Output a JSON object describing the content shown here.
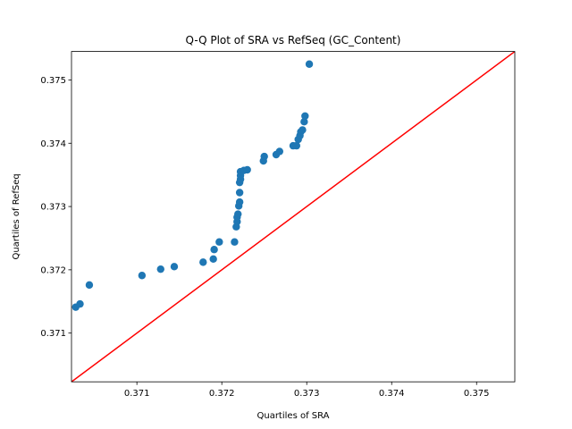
{
  "chart_data": {
    "type": "scatter",
    "title": "Q-Q Plot of SRA vs RefSeq (GC_Content)",
    "xlabel": "Quartiles of SRA",
    "ylabel": "Quartiles of RefSeq",
    "xlim": [
      0.37023,
      0.37545
    ],
    "ylim": [
      0.37023,
      0.37545
    ],
    "xticks": [
      0.371,
      0.372,
      0.373,
      0.374,
      0.375
    ],
    "yticks": [
      0.371,
      0.372,
      0.373,
      0.374,
      0.375
    ],
    "xtick_labels": [
      "0.371",
      "0.372",
      "0.373",
      "0.374",
      "0.375"
    ],
    "ytick_labels": [
      "0.371",
      "0.372",
      "0.373",
      "0.374",
      "0.375"
    ],
    "grid": false,
    "series": [
      {
        "color": "#1f77b4",
        "points": [
          [
            0.37028,
            0.37141
          ],
          [
            0.37033,
            0.37146
          ],
          [
            0.37044,
            0.37176
          ],
          [
            0.37106,
            0.37191
          ],
          [
            0.37128,
            0.37201
          ],
          [
            0.37144,
            0.37205
          ],
          [
            0.37178,
            0.37212
          ],
          [
            0.3719,
            0.37217
          ],
          [
            0.37191,
            0.37232
          ],
          [
            0.37197,
            0.37244
          ],
          [
            0.37215,
            0.37244
          ],
          [
            0.37217,
            0.37268
          ],
          [
            0.37218,
            0.37276
          ],
          [
            0.37218,
            0.37283
          ],
          [
            0.37219,
            0.37288
          ],
          [
            0.3722,
            0.37301
          ],
          [
            0.37221,
            0.37307
          ],
          [
            0.37221,
            0.37322
          ],
          [
            0.37221,
            0.37338
          ],
          [
            0.37222,
            0.37343
          ],
          [
            0.37222,
            0.37349
          ],
          [
            0.37222,
            0.37355
          ],
          [
            0.37226,
            0.37357
          ],
          [
            0.3723,
            0.37358
          ],
          [
            0.37249,
            0.37372
          ],
          [
            0.3725,
            0.37379
          ],
          [
            0.37264,
            0.37382
          ],
          [
            0.37268,
            0.37387
          ],
          [
            0.37284,
            0.37396
          ],
          [
            0.37288,
            0.37396
          ],
          [
            0.3729,
            0.37406
          ],
          [
            0.37292,
            0.37412
          ],
          [
            0.37293,
            0.37418
          ],
          [
            0.37295,
            0.37421
          ],
          [
            0.37297,
            0.37434
          ],
          [
            0.37298,
            0.37443
          ],
          [
            0.37303,
            0.37525
          ]
        ]
      }
    ],
    "reference_line": {
      "color": "#ff0000",
      "from": [
        0.37023,
        0.37023
      ],
      "to": [
        0.37545,
        0.37545
      ]
    }
  }
}
